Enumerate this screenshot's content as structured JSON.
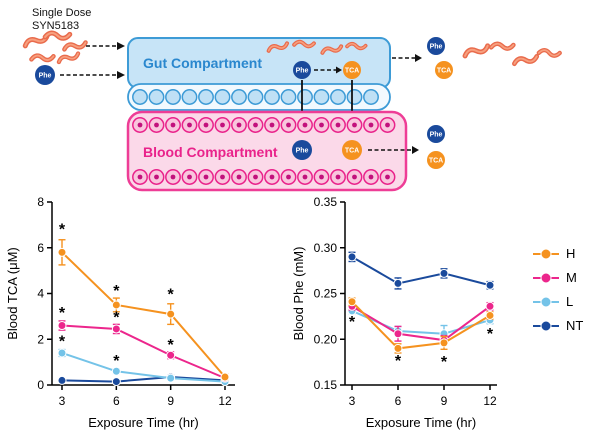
{
  "figure": {
    "dose_label_line1": "Single Dose",
    "dose_label_line2": "SYN5183",
    "gut_label": "Gut Compartment",
    "blood_label": "Blood Compartment",
    "phe_label": "Phe",
    "tca_label": "TCA",
    "colors": {
      "gut_fill": "#C7E4F7",
      "gut_border": "#3D9BD6",
      "gut_text": "#2A87CE",
      "blood_fill": "#FBD9E9",
      "blood_border": "#EE3D96",
      "blood_text": "#E9238B",
      "phe_circle": "#1A4A9C",
      "tca_circle": "#F5921F",
      "bacteria": "#E96B4C",
      "arrow": "#111111"
    }
  },
  "legend": {
    "position": "right",
    "items": [
      {
        "label": "H",
        "color": "#F5921F"
      },
      {
        "label": "M",
        "color": "#EC268C"
      },
      {
        "label": "L",
        "color": "#74C3E8"
      },
      {
        "label": "NT",
        "color": "#1A4A9C"
      }
    ]
  },
  "chart_data": [
    {
      "type": "line",
      "title": "",
      "xlabel": "Exposure Time (hr)",
      "ylabel": "Blood TCA (μM)",
      "x": [
        3,
        6,
        9,
        12
      ],
      "xlim": [
        3,
        12
      ],
      "ylim": [
        0,
        8
      ],
      "yticks": [
        0,
        2,
        4,
        6,
        8
      ],
      "ytick_decimals": 0,
      "grid": false,
      "series": [
        {
          "name": "NT",
          "color": "#1A4A9C",
          "values": [
            0.2,
            0.15,
            0.35,
            0.2
          ],
          "errors": [
            0.05,
            0.05,
            0.1,
            0.05
          ]
        },
        {
          "name": "L",
          "color": "#74C3E8",
          "values": [
            1.4,
            0.6,
            0.3,
            0.15
          ],
          "errors": [
            0.15,
            0.1,
            0.08,
            0.05
          ]
        },
        {
          "name": "M",
          "color": "#EC268C",
          "values": [
            2.6,
            2.45,
            1.3,
            0.3
          ],
          "errors": [
            0.2,
            0.2,
            0.15,
            0.08
          ]
        },
        {
          "name": "H",
          "color": "#F5921F",
          "values": [
            5.8,
            3.5,
            3.1,
            0.35
          ],
          "errors": [
            0.55,
            0.3,
            0.45,
            0.12
          ]
        }
      ],
      "annotations": [
        {
          "x": 3,
          "y": 6.8,
          "text": "*"
        },
        {
          "x": 3,
          "y": 3.15,
          "text": "*"
        },
        {
          "x": 3,
          "y": 1.9,
          "text": "*"
        },
        {
          "x": 6,
          "y": 4.1,
          "text": "*"
        },
        {
          "x": 6,
          "y": 2.95,
          "text": "*"
        },
        {
          "x": 6,
          "y": 1.05,
          "text": "*"
        },
        {
          "x": 9,
          "y": 3.95,
          "text": "*"
        },
        {
          "x": 9,
          "y": 1.75,
          "text": "*"
        }
      ]
    },
    {
      "type": "line",
      "title": "",
      "xlabel": "Exposure Time (hr)",
      "ylabel": "Blood Phe (mM)",
      "x": [
        3,
        6,
        9,
        12
      ],
      "xlim": [
        3,
        12
      ],
      "ylim": [
        0.15,
        0.35
      ],
      "yticks": [
        0.15,
        0.2,
        0.25,
        0.3,
        0.35
      ],
      "ytick_decimals": 2,
      "grid": false,
      "series": [
        {
          "name": "L",
          "color": "#74C3E8",
          "values": [
            0.231,
            0.209,
            0.206,
            0.221
          ],
          "errors": [
            0.003,
            0.005,
            0.009,
            0.004
          ]
        },
        {
          "name": "M",
          "color": "#EC268C",
          "values": [
            0.236,
            0.206,
            0.199,
            0.236
          ],
          "errors": [
            0.004,
            0.008,
            0.005,
            0.004
          ]
        },
        {
          "name": "H",
          "color": "#F5921F",
          "values": [
            0.241,
            0.19,
            0.196,
            0.226
          ],
          "errors": [
            0.004,
            0.005,
            0.007,
            0.004
          ]
        },
        {
          "name": "NT",
          "color": "#1A4A9C",
          "values": [
            0.29,
            0.261,
            0.272,
            0.259
          ],
          "errors": [
            0.005,
            0.006,
            0.005,
            0.004
          ]
        }
      ],
      "annotations": [
        {
          "x": 3,
          "y": 0.219,
          "text": "*"
        },
        {
          "x": 6,
          "y": 0.176,
          "text": "*"
        },
        {
          "x": 9,
          "y": 0.175,
          "text": "*"
        },
        {
          "x": 12,
          "y": 0.206,
          "text": "*"
        }
      ]
    }
  ]
}
